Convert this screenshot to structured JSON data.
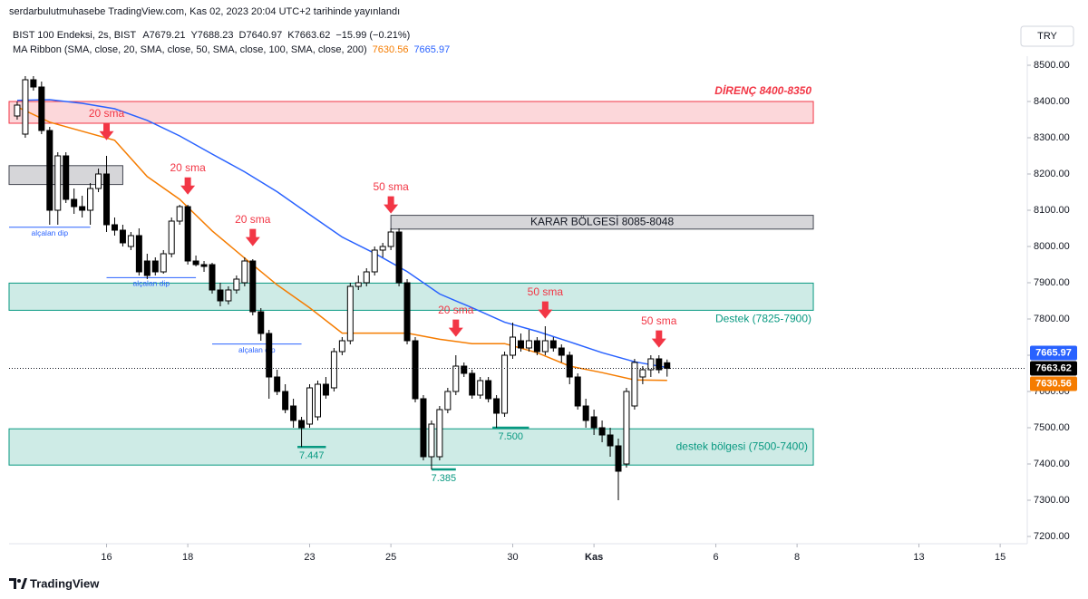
{
  "header": {
    "publisher": "serdarbulutmuhasebe TradingView.com, Kas 02, 2023 20:04 UTC+2 tarihinde yayınlandı",
    "symbol": "BIST 100 Endeksi, 2s, BIST",
    "ohlc_labels": [
      "A",
      "Y",
      "D",
      "K"
    ],
    "change": "−15.99 (−0.21%)",
    "indicator": "MA Ribbon (SMA, close, 20, SMA, close, 50, SMA, close, 100, SMA, close, 200)",
    "currency": "TRY",
    "brand": "TradingView"
  },
  "chart_data": {
    "type": "candlestick",
    "x": [
      1,
      2,
      3,
      4,
      5,
      6,
      7,
      8,
      9,
      10,
      11,
      12,
      13,
      14,
      15,
      16,
      17,
      18,
      19,
      20,
      21,
      22,
      23,
      24,
      25,
      26,
      27,
      28,
      29,
      30,
      31,
      32,
      33,
      34,
      35,
      36,
      37,
      38,
      39,
      40,
      41,
      42,
      43,
      44,
      45,
      46,
      47,
      48,
      49,
      50,
      51,
      52,
      53,
      54,
      55,
      56,
      57,
      58,
      59,
      60,
      61,
      62,
      63,
      64,
      65,
      66,
      67,
      68,
      69,
      70,
      71,
      72,
      73,
      74,
      75,
      76,
      77,
      78,
      79,
      80,
      81
    ],
    "open": [
      8360,
      8310,
      8460,
      8440,
      8320,
      8100,
      8250,
      8130,
      8110,
      8100,
      8160,
      8200,
      8060,
      8045,
      8000,
      8030,
      7960,
      7960,
      7930,
      7980,
      8070,
      8110,
      7960,
      7950,
      7950,
      7880,
      7850,
      7880,
      7900,
      7960,
      7820,
      7760,
      7640,
      7600,
      7560,
      7520,
      7510,
      7530,
      7620,
      7610,
      7710,
      7740,
      7890,
      7900,
      7930,
      7990,
      8000,
      8040,
      7900,
      7740,
      7580,
      7420,
      7420,
      7550,
      7600,
      7670,
      7650,
      7590,
      7630,
      7580,
      7540,
      7700,
      7740,
      7720,
      7740,
      7710,
      7740,
      7720,
      7700,
      7640,
      7560,
      7530,
      7500,
      7480,
      7450,
      7400,
      7560,
      7640,
      7660,
      7690,
      7679.21
    ],
    "high": [
      8400,
      8470,
      8470,
      8455,
      8330,
      8260,
      8260,
      8160,
      8140,
      8175,
      8215,
      8250,
      8080,
      8060,
      8040,
      8050,
      7980,
      7970,
      7990,
      8080,
      8115,
      8115,
      7975,
      7960,
      7955,
      7900,
      7890,
      7920,
      7970,
      7965,
      7830,
      7770,
      7660,
      7620,
      7580,
      7530,
      7620,
      7630,
      7640,
      7720,
      7750,
      7900,
      7920,
      7940,
      8000,
      8010,
      8050,
      8050,
      7910,
      7750,
      7590,
      7520,
      7560,
      7610,
      7700,
      7680,
      7660,
      7640,
      7640,
      7590,
      7710,
      7790,
      7760,
      7770,
      7750,
      7780,
      7750,
      7730,
      7710,
      7650,
      7580,
      7550,
      7520,
      7500,
      7470,
      7610,
      7690,
      7670,
      7700,
      7700,
      7688.23
    ],
    "low": [
      8350,
      8300,
      8430,
      8310,
      8060,
      8060,
      8120,
      8090,
      8080,
      8060,
      8150,
      8040,
      8030,
      8000,
      7990,
      7920,
      7910,
      7920,
      7925,
      7970,
      8060,
      7950,
      7945,
      7930,
      7870,
      7835,
      7840,
      7870,
      7890,
      7810,
      7740,
      7580,
      7590,
      7540,
      7500,
      7447,
      7500,
      7520,
      7580,
      7600,
      7700,
      7730,
      7880,
      7890,
      7920,
      7970,
      7990,
      7890,
      7730,
      7570,
      7410,
      7385,
      7410,
      7540,
      7590,
      7640,
      7580,
      7580,
      7570,
      7500,
      7530,
      7690,
      7710,
      7710,
      7700,
      7700,
      7710,
      7680,
      7620,
      7550,
      7500,
      7480,
      7460,
      7420,
      7300,
      7390,
      7550,
      7620,
      7640,
      7650,
      7640.97
    ],
    "close": [
      8390,
      8460,
      8440,
      8320,
      8100,
      8250,
      8130,
      8110,
      8100,
      8160,
      8200,
      8060,
      8045,
      8010,
      8030,
      7930,
      7920,
      7930,
      7980,
      8070,
      8110,
      7960,
      7950,
      7945,
      7880,
      7850,
      7880,
      7910,
      7960,
      7820,
      7760,
      7640,
      7600,
      7550,
      7520,
      7500,
      7610,
      7620,
      7590,
      7710,
      7740,
      7890,
      7900,
      7930,
      7990,
      8000,
      8040,
      7900,
      7740,
      7580,
      7420,
      7510,
      7550,
      7600,
      7670,
      7650,
      7590,
      7630,
      7580,
      7540,
      7700,
      7750,
      7720,
      7740,
      7710,
      7740,
      7720,
      7700,
      7640,
      7560,
      7520,
      7500,
      7480,
      7450,
      7380,
      7600,
      7680,
      7660,
      7690,
      7660,
      7663.62
    ],
    "lines": [
      {
        "color": "#f57c00",
        "x": [
          1,
          5,
          9,
          13,
          17,
          21,
          25,
          29,
          33,
          37,
          41,
          45,
          49,
          53,
          57,
          61,
          65,
          69,
          73,
          77,
          81
        ],
        "values": [
          8385,
          8343,
          8318,
          8293,
          8193,
          8130,
          8043,
          7968,
          7894,
          7831,
          7761,
          7761,
          7761,
          7744,
          7732,
          7732,
          7707,
          7670,
          7652,
          7632,
          7630.56
        ]
      },
      {
        "color": "#2962ff",
        "x": [
          1,
          5,
          9,
          13,
          17,
          21,
          25,
          29,
          33,
          37,
          41,
          45,
          49,
          53,
          57,
          61,
          65,
          69,
          73,
          77,
          81
        ],
        "values": [
          8403,
          8405,
          8395,
          8380,
          8348,
          8305,
          8255,
          8206,
          8151,
          8088,
          8026,
          7981,
          7931,
          7869,
          7831,
          7791,
          7766,
          7737,
          7707,
          7682,
          7665.97
        ]
      }
    ],
    "xlim": [
      0,
      125
    ],
    "xticks": [
      {
        "value": 12,
        "label": "16"
      },
      {
        "value": 22,
        "label": "18"
      },
      {
        "value": 37,
        "label": "23"
      },
      {
        "value": 47,
        "label": "25"
      },
      {
        "value": 62,
        "label": "30"
      },
      {
        "value": 72,
        "label": "Kas"
      },
      {
        "value": 87,
        "label": "6"
      },
      {
        "value": 97,
        "label": "8"
      },
      {
        "value": 112,
        "label": "13"
      },
      {
        "value": 122,
        "label": "15"
      }
    ],
    "ylim": [
      7180,
      8525
    ],
    "yticks": [
      {
        "value": 7200,
        "label": "7200.00"
      },
      {
        "value": 7300,
        "label": "7300.00"
      },
      {
        "value": 7400,
        "label": "7400.00"
      },
      {
        "value": 7500,
        "label": "7500.00"
      },
      {
        "value": 7600,
        "label": "7600.00"
      },
      {
        "value": 7700,
        "label": "7700.00"
      },
      {
        "value": 7800,
        "label": "7800.00"
      },
      {
        "value": 7900,
        "label": "7900.00"
      },
      {
        "value": 8000,
        "label": "8000.00"
      },
      {
        "value": 8100,
        "label": "8100.00"
      },
      {
        "value": 8200,
        "label": "8200.00"
      },
      {
        "value": 8300,
        "label": "8300.00"
      },
      {
        "value": 8400,
        "label": "8400.00"
      },
      {
        "value": 8500,
        "label": "8500.00"
      }
    ],
    "grid": false,
    "zones": [
      {
        "label": "DİRENÇ 8400-8350",
        "label_position": "above",
        "x": [
          0,
          99
        ],
        "y": [
          8340,
          8400
        ],
        "color": "#f23645"
      },
      {
        "x": [
          0,
          14
        ],
        "y": [
          8171,
          8223
        ],
        "color": "#434651"
      },
      {
        "label": "KARAR BÖLGESİ 8085-8048",
        "label_position": "center",
        "x": [
          47,
          99
        ],
        "y": [
          8048,
          8086
        ],
        "color": "#434651"
      },
      {
        "label": "Destek (7825-7900)",
        "label_position": "below",
        "x": [
          0,
          99
        ],
        "y": [
          7824,
          7899
        ],
        "color": "#089981"
      },
      {
        "label": "destek bölgesi (7500-7400)",
        "label_position": "inside",
        "x": [
          0,
          99
        ],
        "y": [
          7397,
          7497
        ],
        "color": "#089981"
      }
    ],
    "levels": [
      {
        "label": "alçalan dip",
        "style": "thin",
        "color": "#2962ff",
        "x": [
          0,
          10
        ],
        "y": 8053
      },
      {
        "label": "alçalan dip",
        "style": "thin",
        "color": "#2962ff",
        "x": [
          12,
          23
        ],
        "y": 7914
      },
      {
        "label": "alçalan dip",
        "style": "thin",
        "color": "#2962ff",
        "x": [
          25,
          36
        ],
        "y": 7731
      },
      {
        "label": "7.447",
        "style": "thick",
        "color": "#089981",
        "x": [
          35.5,
          39
        ],
        "y": 7447
      },
      {
        "label": "7.385",
        "style": "thick",
        "color": "#089981",
        "x": [
          52,
          55
        ],
        "y": 7385
      },
      {
        "label": "7.500",
        "style": "thick",
        "color": "#089981",
        "x": [
          59.5,
          64
        ],
        "y": 7500
      }
    ],
    "annotations": [
      {
        "text": "20 sma",
        "x": 12,
        "y": 8293
      },
      {
        "text": "20 sma",
        "x": 22,
        "y": 8143
      },
      {
        "text": "20 sma",
        "x": 30,
        "y": 8001
      },
      {
        "text": "50 sma",
        "x": 47,
        "y": 8091
      },
      {
        "text": "20 sma",
        "x": 55,
        "y": 7751
      },
      {
        "text": "50 sma",
        "x": 66,
        "y": 7801
      },
      {
        "text": "50 sma",
        "x": 80,
        "y": 7721
      }
    ],
    "annotation_color": "#f23645"
  }
}
